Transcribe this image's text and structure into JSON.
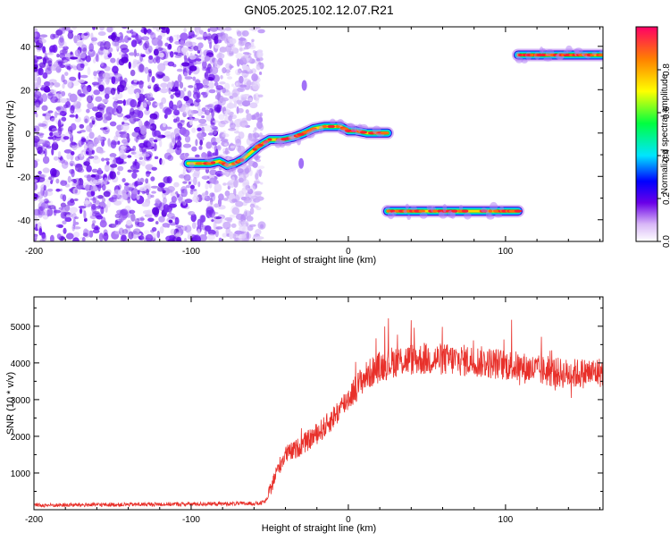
{
  "title": "GN05.2025.102.12.07.R21",
  "chart_data": [
    {
      "type": "heatmap",
      "panel": "top",
      "xlabel": "Height of straight line (km)",
      "ylabel": "Frequency (Hz)",
      "xlim": [
        -200,
        162
      ],
      "ylim": [
        -50,
        49
      ],
      "xticks": [
        -200,
        -100,
        0,
        100
      ],
      "yticks": [
        -40,
        -20,
        0,
        20,
        40
      ],
      "colorbar": {
        "label": "Normalized spectral amplitude",
        "range": [
          0,
          1
        ],
        "ticks": [
          0.0,
          0.2,
          0.4,
          0.6,
          0.8
        ]
      },
      "noise_region": {
        "x": [
          -200,
          -55
        ],
        "amplitude": 0.05
      },
      "tracks": [
        {
          "name": "",
          "x": [
            -102,
            -88,
            -82,
            -77,
            -72,
            -67,
            -62,
            -57,
            -50,
            -42,
            -35,
            -28,
            -22,
            -15,
            -5,
            0,
            5,
            12,
            18,
            25
          ],
          "y": [
            -14,
            -14,
            -13,
            -15,
            -14,
            -12,
            -9,
            -6,
            -3,
            -3,
            -2,
            0,
            2,
            3,
            3,
            1,
            1,
            0,
            0,
            0
          ]
        },
        {
          "name": "",
          "x": [
            25,
            108
          ],
          "y": [
            -36,
            -36
          ]
        },
        {
          "name": "",
          "x": [
            108,
            162
          ],
          "y": [
            36,
            36
          ]
        }
      ],
      "isolated_blips": [
        {
          "x": -28,
          "y": 22
        },
        {
          "x": -30,
          "y": -14
        }
      ]
    },
    {
      "type": "line",
      "panel": "bottom",
      "xlabel": "Height of straight line (km)",
      "ylabel": "SNR (10 * v/v)",
      "xlim": [
        -200,
        162
      ],
      "ylim": [
        0,
        5800
      ],
      "xticks": [
        -200,
        -100,
        0,
        100
      ],
      "yticks": [
        1000,
        2000,
        3000,
        4000,
        5000
      ],
      "series": [
        {
          "name": "",
          "color": "#e8302a",
          "profile_x": [
            -200,
            -56,
            -52,
            -45,
            -40,
            -35,
            -25,
            -15,
            -5,
            0,
            10,
            20,
            30,
            40,
            60,
            80,
            100,
            120,
            140,
            162
          ],
          "profile_y": [
            120,
            170,
            250,
            1100,
            1500,
            1600,
            1900,
            2250,
            2750,
            3050,
            3600,
            3900,
            4050,
            4100,
            4100,
            4050,
            3950,
            3800,
            3700,
            3750
          ],
          "noise_amplitude": 300
        }
      ]
    }
  ]
}
